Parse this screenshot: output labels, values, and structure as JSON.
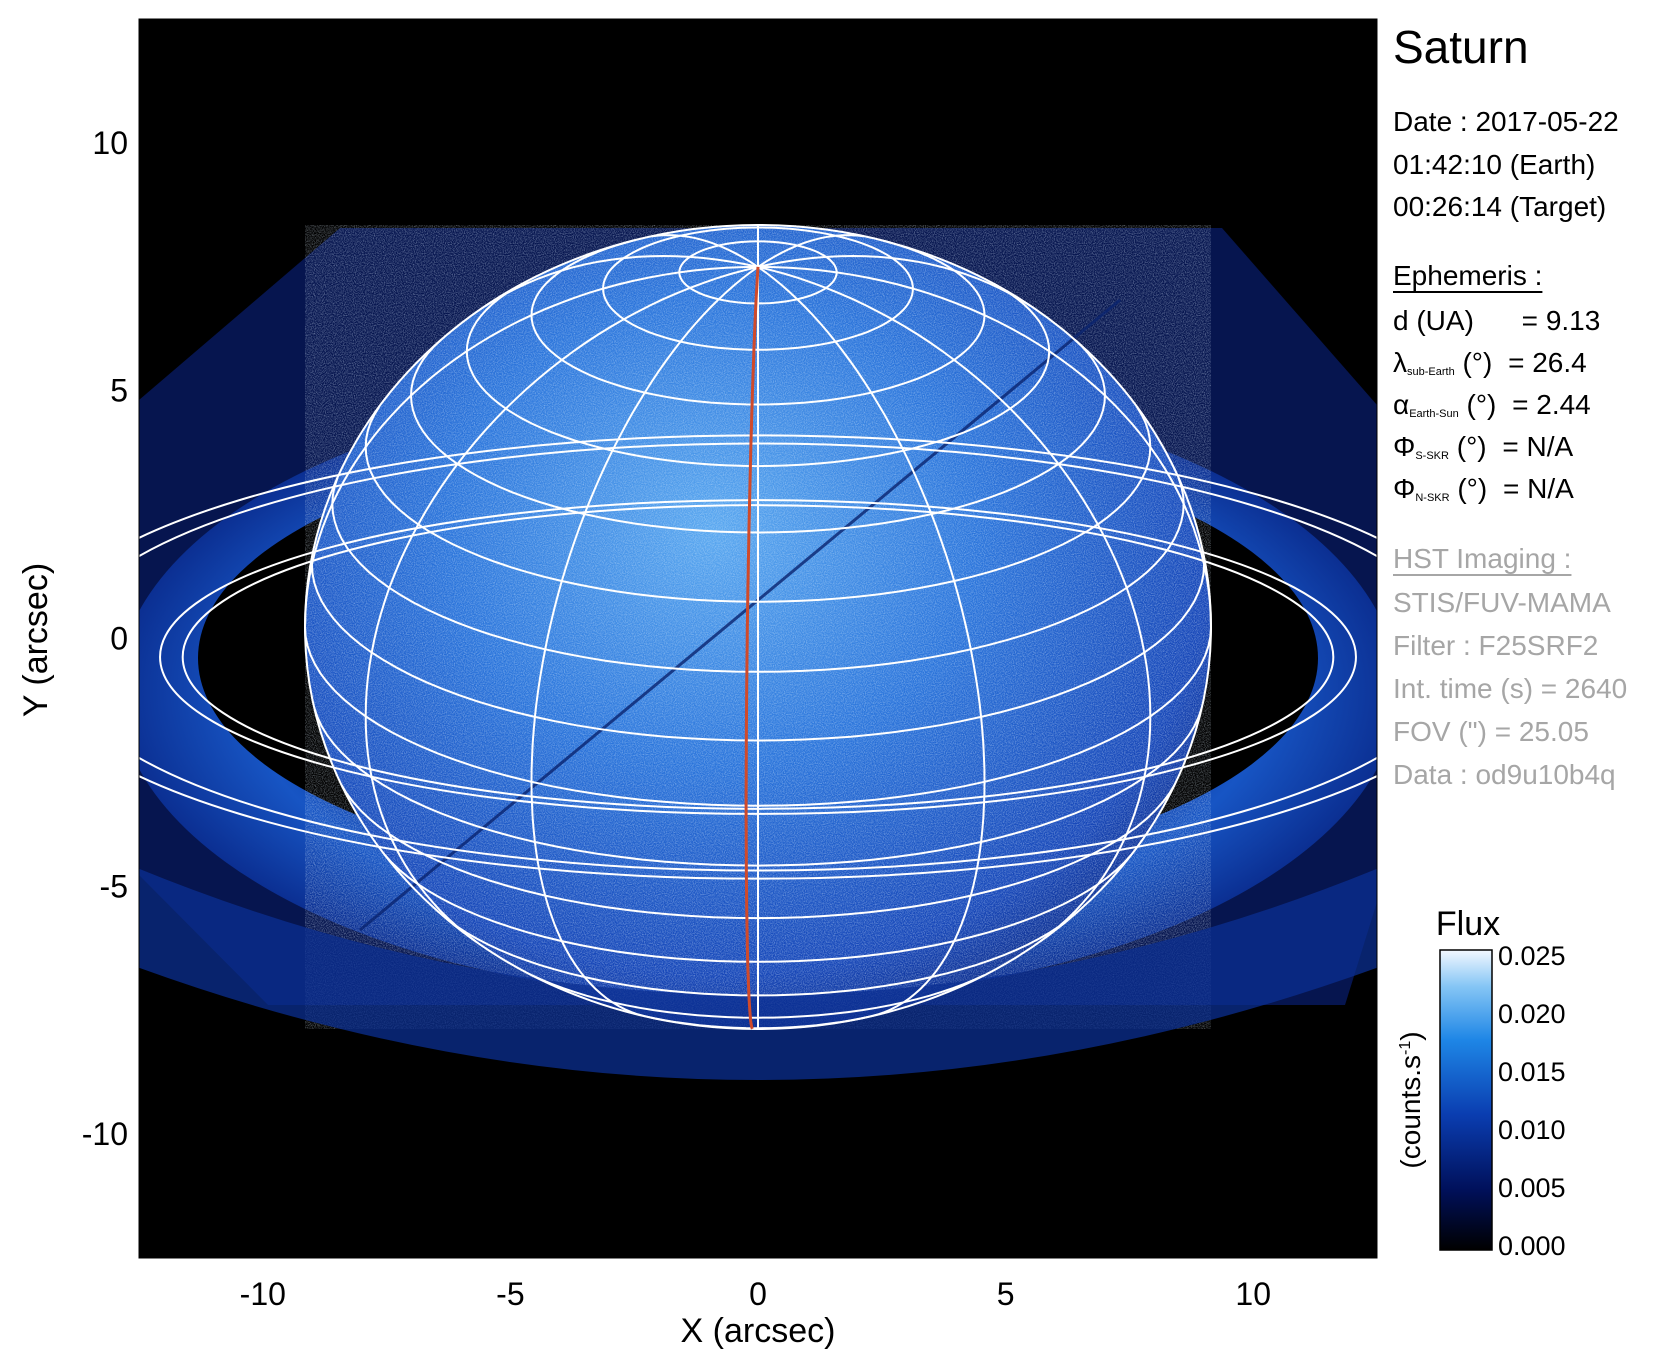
{
  "figure": {
    "target": "Saturn",
    "date_lines": [
      "Date : 2017-05-22",
      "01:42:10 (Earth)",
      "00:26:14 (Target)"
    ],
    "ephemeris": {
      "header": "Ephemeris :",
      "rows": [
        {
          "sym": "d (UA)",
          "sub": "",
          "unit": "",
          "value": "= 9.13"
        },
        {
          "sym": "λ",
          "sub": "sub-Earth",
          "unit": " (°)",
          "value": "= 26.4"
        },
        {
          "sym": "α",
          "sub": "Earth-Sun",
          "unit": " (°)",
          "value": "= 2.44"
        },
        {
          "sym": "Φ",
          "sub": "S-SKR",
          "unit": " (°)",
          "value": "= N/A"
        },
        {
          "sym": "Φ",
          "sub": "N-SKR",
          "unit": " (°)",
          "value": "= N/A"
        }
      ]
    },
    "imaging": {
      "header": "HST Imaging :",
      "lines": [
        "STIS/FUV-MAMA",
        "Filter : F25SRF2",
        "Int. time (s) = 2640",
        "FOV (\") = 25.05",
        "Data : od9u10b4q"
      ]
    },
    "axes": {
      "xlabel": "X (arcsec)",
      "ylabel": "Y (arcsec)",
      "x_ticks": [
        -10,
        -5,
        0,
        5,
        10
      ],
      "y_ticks": [
        10,
        5,
        0,
        -5,
        -10
      ],
      "range": [
        -12.5,
        12.5
      ]
    },
    "colorbar": {
      "title": "Flux",
      "label": "(counts.s",
      "label_sup": "-1",
      "label_close": ")",
      "ticks": [
        "0.025",
        "0.020",
        "0.015",
        "0.010",
        "0.005",
        "0.000"
      ]
    },
    "colors": {
      "background": "#000000",
      "planet_blue": "#1a5fd0",
      "grid": "#ffffff",
      "meridian": "#c0392b"
    }
  }
}
